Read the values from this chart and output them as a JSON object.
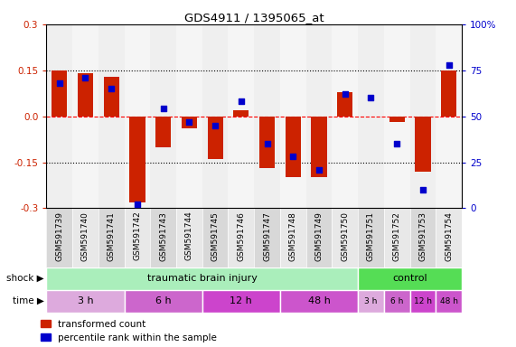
{
  "title": "GDS4911 / 1395065_at",
  "samples": [
    "GSM591739",
    "GSM591740",
    "GSM591741",
    "GSM591742",
    "GSM591743",
    "GSM591744",
    "GSM591745",
    "GSM591746",
    "GSM591747",
    "GSM591748",
    "GSM591749",
    "GSM591750",
    "GSM591751",
    "GSM591752",
    "GSM591753",
    "GSM591754"
  ],
  "red_values": [
    0.15,
    0.14,
    0.13,
    -0.28,
    -0.1,
    -0.04,
    -0.14,
    0.02,
    -0.17,
    -0.2,
    -0.2,
    0.08,
    0.0,
    -0.02,
    -0.18,
    0.15
  ],
  "blue_values_pct": [
    68,
    71,
    65,
    2,
    54,
    47,
    45,
    58,
    35,
    28,
    21,
    62,
    60,
    35,
    10,
    78
  ],
  "ylim_left": [
    -0.3,
    0.3
  ],
  "ylim_right": [
    0,
    100
  ],
  "yticks_left": [
    -0.3,
    -0.15,
    0.0,
    0.15,
    0.3
  ],
  "yticks_right": [
    0,
    25,
    50,
    75,
    100
  ],
  "bar_color": "#cc2200",
  "dot_color": "#0000cc",
  "shock_tbi_label": "traumatic brain injury",
  "shock_ctrl_label": "control",
  "shock_tbi_color": "#aaeebb",
  "shock_ctrl_color": "#55dd55",
  "tbi_sample_count": 12,
  "ctrl_sample_count": 4,
  "tbi_time_labels": [
    "3 h",
    "6 h",
    "12 h",
    "48 h"
  ],
  "tbi_time_counts": [
    3,
    3,
    3,
    3
  ],
  "tbi_time_colors": [
    "#ddaadd",
    "#cc66cc",
    "#cc44cc",
    "#cc55cc"
  ],
  "ctrl_time_labels": [
    "3 h",
    "6 h",
    "12 h",
    "48 h"
  ],
  "ctrl_time_counts": [
    1,
    1,
    1,
    1
  ],
  "ctrl_time_colors": [
    "#ddaadd",
    "#cc66cc",
    "#cc44cc",
    "#cc55cc"
  ],
  "legend_red": "transformed count",
  "legend_blue": "percentile rank within the sample",
  "shock_label": "shock",
  "time_label": "time",
  "tick_color_left": "#cc2200",
  "tick_color_right": "#0000cc"
}
